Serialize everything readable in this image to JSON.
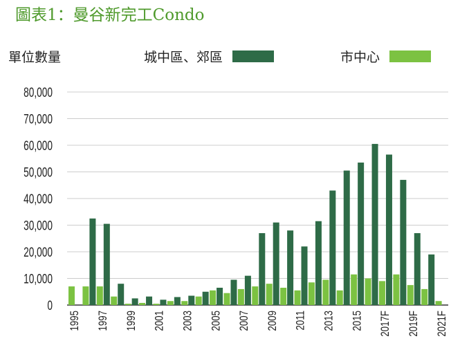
{
  "title": "圖表1：曼谷新完工Condo",
  "unit_label": "單位數量",
  "colors": {
    "title": "#4f9a2c",
    "suburban": "#2e6b47",
    "cbd": "#7cc242",
    "grid": "#cccccc",
    "axis": "#333333"
  },
  "chart_data": {
    "type": "bar",
    "title": "圖表1：曼谷新完工Condo",
    "ylabel": "單位數量",
    "xlabel": "",
    "ylim": [
      0,
      80000
    ],
    "yticks": [
      "80,000",
      "70,000",
      "60,000",
      "50,000",
      "40,000",
      "30,000",
      "20,000",
      "10,000",
      "0"
    ],
    "categories": [
      "1995",
      "1996",
      "1997",
      "1998",
      "1999",
      "2000",
      "2001",
      "2002",
      "2003",
      "2004",
      "2005",
      "2006",
      "2007",
      "2008",
      "2009",
      "2010",
      "2011",
      "2012",
      "2013",
      "2014",
      "2015",
      "2016",
      "2017F",
      "2018F",
      "2019F",
      "2020F",
      "2021F"
    ],
    "xtick_labels": [
      "1995",
      "",
      "1997",
      "",
      "1999",
      "",
      "2001",
      "",
      "2003",
      "",
      "2005",
      "",
      "2007",
      "",
      "2009",
      "",
      "2011",
      "",
      "2013",
      "",
      "2015",
      "",
      "2017F",
      "",
      "2019F",
      "",
      "2021F"
    ],
    "legend_position": "top",
    "grid": true,
    "series": [
      {
        "name": "城中區、郊區",
        "color": "#2e6b47",
        "values": [
          0,
          32500,
          30500,
          8000,
          2500,
          3200,
          2000,
          3000,
          3500,
          5000,
          6500,
          9500,
          11000,
          27000,
          31000,
          28000,
          22000,
          31500,
          43000,
          50500,
          53500,
          60500,
          56500,
          47000,
          27000,
          19000,
          0
        ]
      },
      {
        "name": "市中心",
        "color": "#7cc242",
        "values": [
          7000,
          7000,
          7000,
          3200,
          500,
          800,
          500,
          1500,
          1500,
          3200,
          5500,
          4500,
          6000,
          7000,
          8000,
          6500,
          5500,
          8500,
          9500,
          5500,
          11500,
          10000,
          9000,
          11500,
          7500,
          6000,
          1500
        ]
      }
    ]
  }
}
